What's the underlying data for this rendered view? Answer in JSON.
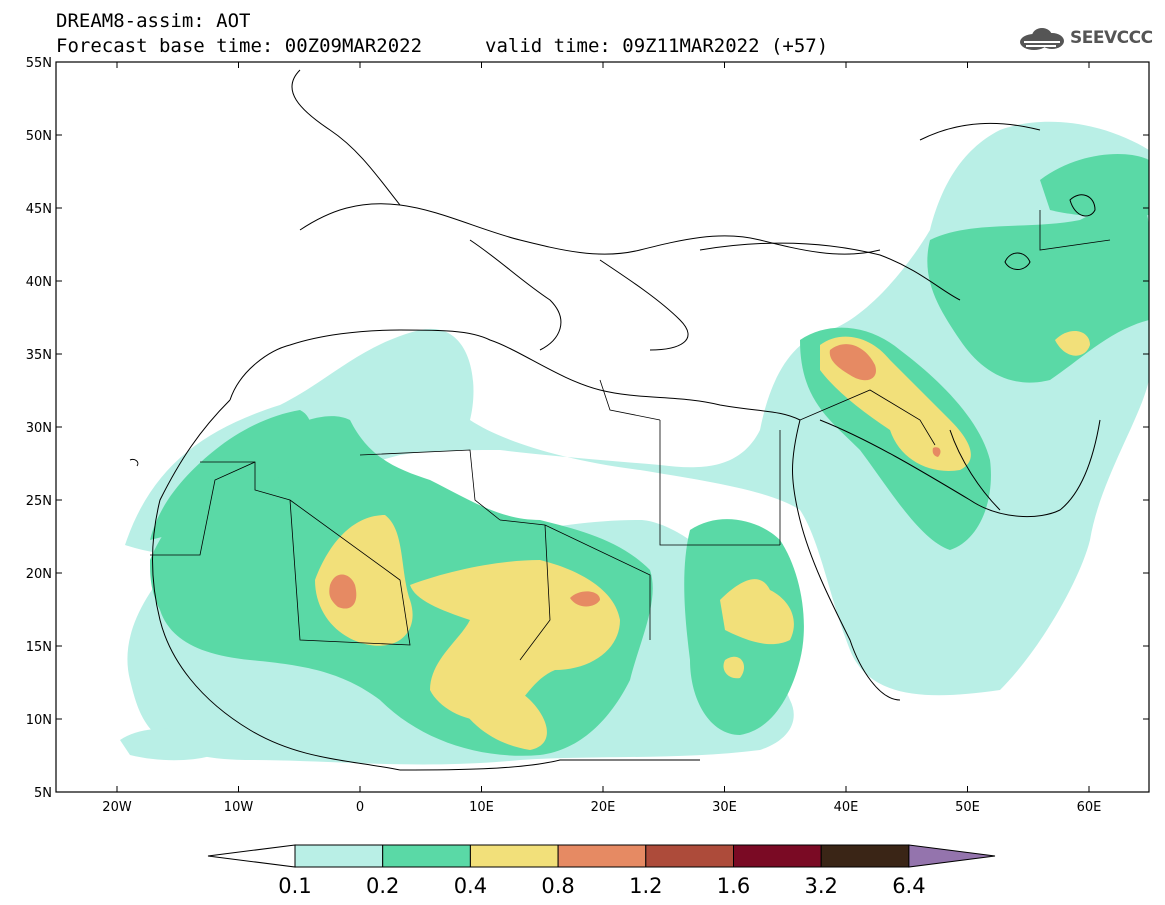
{
  "header": {
    "line1": "DREAM8-assim: AOT",
    "line2_left": "Forecast base time: 00Z09MAR2022",
    "line2_right": "valid time: 09Z11MAR2022 (+57)",
    "logo_text": "SEEVCCC"
  },
  "axes": {
    "lat_labels": [
      "55N",
      "50N",
      "45N",
      "40N",
      "35N",
      "30N",
      "25N",
      "20N",
      "15N",
      "10N",
      "5N"
    ],
    "lon_labels": [
      "20W",
      "10W",
      "0",
      "10E",
      "20E",
      "30E",
      "40E",
      "50E",
      "60E"
    ]
  },
  "colorbar": {
    "levels": [
      "0.1",
      "0.2",
      "0.4",
      "0.8",
      "1.2",
      "1.6",
      "3.2",
      "6.4"
    ],
    "colors": [
      "#ffffff",
      "#b9efe6",
      "#5ad9a6",
      "#f2e07a",
      "#e68a63",
      "#ad4b3a",
      "#7a0a24",
      "#3a2516",
      "#9474ad"
    ]
  }
}
